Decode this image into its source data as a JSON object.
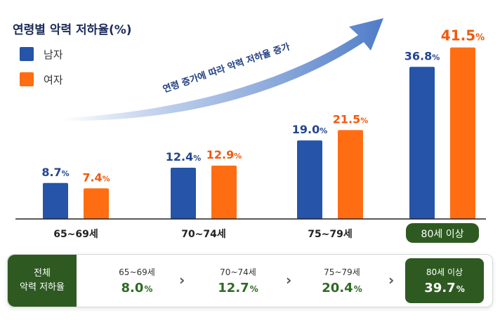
{
  "title": "연령별 악력 저하율(%)",
  "colors": {
    "male": "#2554a9",
    "female": "#ff6d12",
    "female_label": "#ee5a0e",
    "male_label": "#24458e",
    "summary_green": "#2e5a22"
  },
  "arrow_label": "연령 증가에 따라 악력 저하율 증가",
  "chart_data": {
    "type": "bar",
    "title": "연령별 악력 저하율(%)",
    "categories": [
      "65~69세",
      "70~74세",
      "75~79세",
      "80세 이상"
    ],
    "series": [
      {
        "name": "남자",
        "values": [
          8.7,
          12.4,
          19.0,
          36.8
        ],
        "labels": [
          "8.7",
          "12.4",
          "19.0",
          "36.8"
        ]
      },
      {
        "name": "여자",
        "values": [
          7.4,
          12.9,
          21.5,
          41.5
        ],
        "labels": [
          "7.4",
          "12.9",
          "21.5",
          "41.5"
        ]
      }
    ],
    "unit": "%",
    "ylim": [
      0,
      45
    ],
    "grid": false,
    "legend": "top-left",
    "highlight_category": "80세 이상"
  },
  "summary": {
    "header_line1": "전체",
    "header_line2": "악력 저하율",
    "unit": "%",
    "items": [
      {
        "age": "65~69세",
        "value": "8.0"
      },
      {
        "age": "70~74세",
        "value": "12.7"
      },
      {
        "age": "75~79세",
        "value": "20.4"
      },
      {
        "age": "80세 이상",
        "value": "39.7"
      }
    ],
    "chevron": "›"
  }
}
